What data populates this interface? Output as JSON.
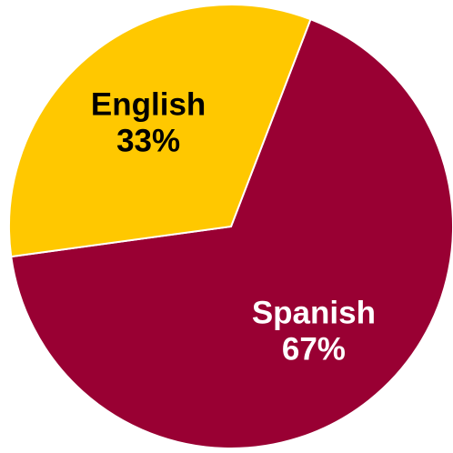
{
  "chart_data": {
    "type": "pie",
    "categories": [
      "Spanish",
      "English"
    ],
    "values": [
      67,
      33
    ],
    "value_labels": [
      "67%",
      "33%"
    ],
    "colors": [
      "#990033",
      "#FFC800"
    ],
    "label_colors": [
      "#FFFFFF",
      "#000000"
    ],
    "start_angle_deg": 21,
    "direction": "clockwise",
    "legend": "none"
  }
}
